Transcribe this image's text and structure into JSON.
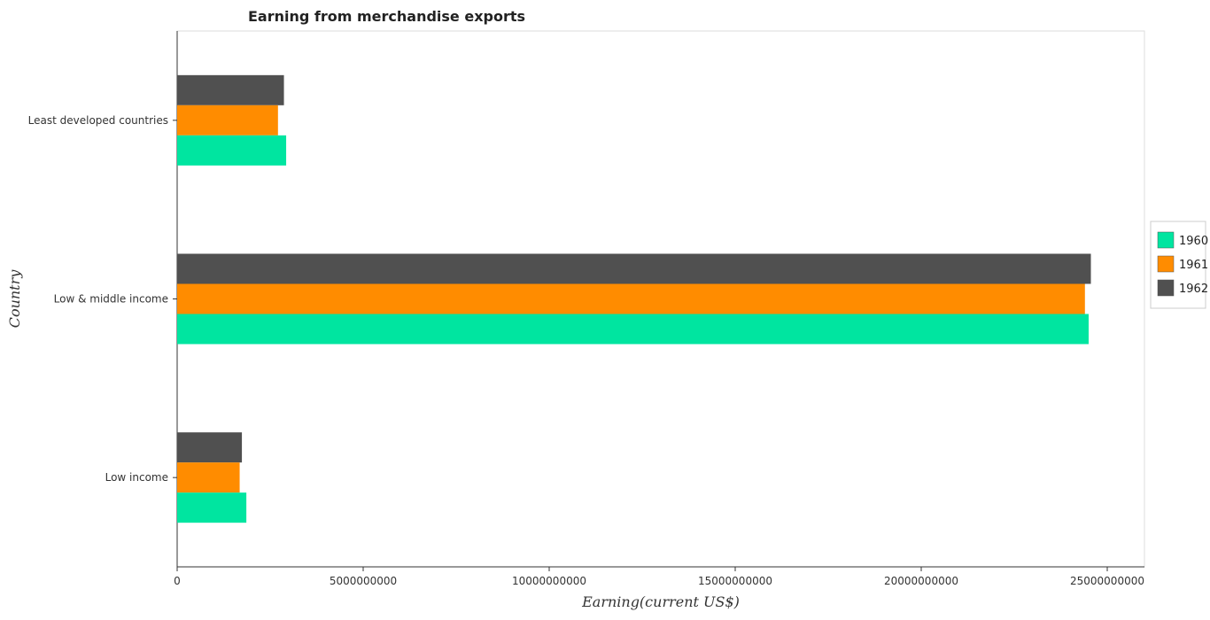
{
  "chart_data": {
    "type": "bar",
    "orientation": "horizontal",
    "title": "Earning from merchandise exports",
    "xlabel": "Earning(current US$)",
    "ylabel": "Country",
    "categories": [
      "Least developed countries",
      "Low & middle income",
      "Low income"
    ],
    "series": [
      {
        "name": "1960",
        "color": "#00e5a0",
        "values": [
          2930000000,
          24500000000,
          1860000000
        ]
      },
      {
        "name": "1961",
        "color": "#ff8c00",
        "values": [
          2710000000,
          24400000000,
          1680000000
        ]
      },
      {
        "name": "1962",
        "color": "#505050",
        "values": [
          2870000000,
          24560000000,
          1740000000
        ]
      }
    ],
    "xlim": [
      0,
      26000000000
    ],
    "xticks": [
      0,
      5000000000,
      10000000000,
      15000000000,
      20000000000,
      25000000000
    ],
    "xtick_labels": [
      "0",
      "5000000000",
      "10000000000",
      "15000000000",
      "20000000000",
      "25000000000"
    ],
    "grid": false,
    "legend_position": "right"
  }
}
